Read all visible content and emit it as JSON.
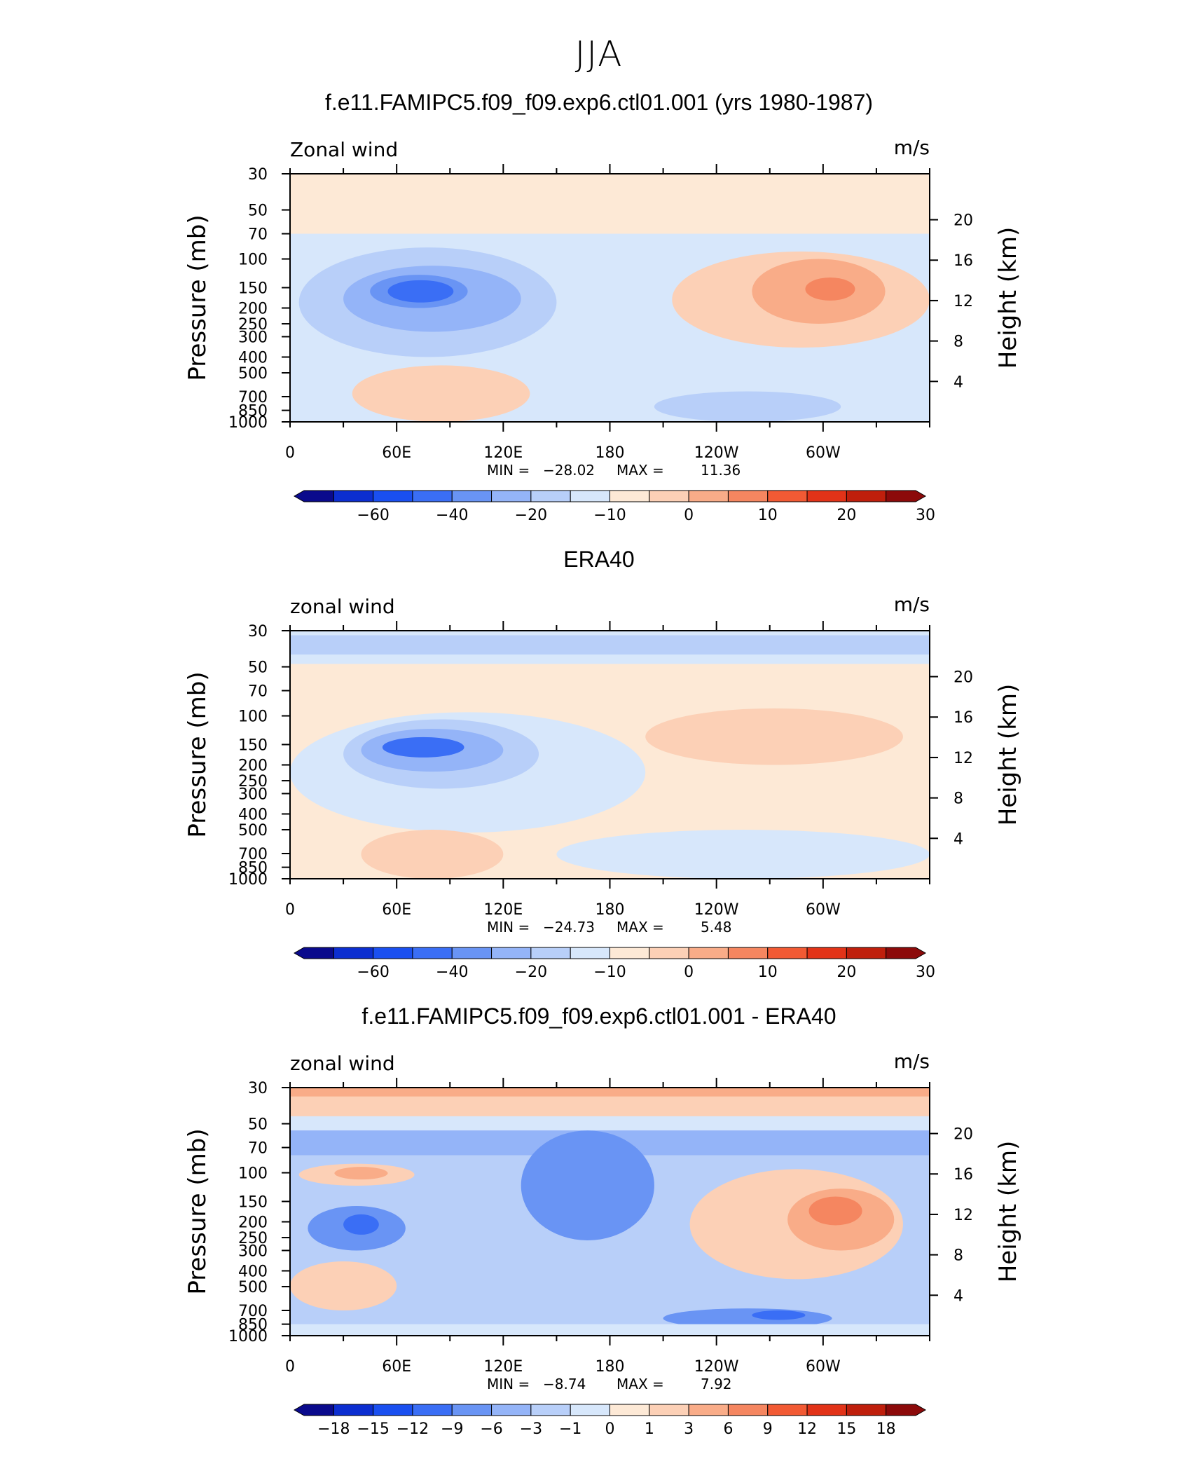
{
  "page_title": "JJA",
  "chart_data": [
    {
      "type": "heatmap",
      "title": "f.e11.FAMIPC5.f09_f09.exp6.ctl01.001 (yrs 1980-1987)",
      "variable": "Zonal wind",
      "units": "m/s",
      "ylabel": "Pressure (mb)",
      "ylabel_right": "Height (km)",
      "xticks": [
        "0",
        "60E",
        "120E",
        "180",
        "120W",
        "60W"
      ],
      "yticks": [
        "30",
        "50",
        "70",
        "100",
        "150",
        "200",
        "250",
        "300",
        "400",
        "500",
        "700",
        "850",
        "1000"
      ],
      "yticks_right": [
        "20",
        "16",
        "12",
        "8",
        "4"
      ],
      "ylim": [
        1000,
        30
      ],
      "stats": {
        "min_label": "MIN =",
        "min": "−28.02",
        "max_label": "MAX =",
        "max": "11.36"
      },
      "colorbar": {
        "colors": [
          "#0a0a8c",
          "#0c2ed0",
          "#1a4ff0",
          "#3a6ef5",
          "#6994f4",
          "#94b4f8",
          "#b8cff9",
          "#d7e7fb",
          "#fde9d6",
          "#fcd0b6",
          "#f9ac88",
          "#f58660",
          "#f25a34",
          "#e23318",
          "#bf1f0c",
          "#8c0a0a"
        ],
        "labels": [
          "−60",
          "−40",
          "−20",
          "−10",
          "0",
          "10",
          "20",
          "30"
        ]
      },
      "field": {
        "background": "#d7e7fb",
        "features": [
          {
            "color": "#fde9d6",
            "lon": [
              0,
              360
            ],
            "p": [
              70,
              30
            ]
          },
          {
            "color": "#b8cff9",
            "lon": [
              5,
              150
            ],
            "p": [
              85,
              400
            ]
          },
          {
            "color": "#94b4f8",
            "lon": [
              30,
              130
            ],
            "p": [
              110,
              280
            ]
          },
          {
            "color": "#6994f4",
            "lon": [
              45,
              100
            ],
            "p": [
              125,
              200
            ]
          },
          {
            "color": "#3a6ef5",
            "lon": [
              55,
              92
            ],
            "p": [
              135,
              185
            ]
          },
          {
            "color": "#fcd0b6",
            "lon": [
              215,
              360
            ],
            "p": [
              90,
              350
            ]
          },
          {
            "color": "#f9ac88",
            "lon": [
              260,
              335
            ],
            "p": [
              100,
              250
            ]
          },
          {
            "color": "#f58660",
            "lon": [
              290,
              318
            ],
            "p": [
              130,
              180
            ]
          },
          {
            "color": "#fcd0b6",
            "lon": [
              35,
              135
            ],
            "p": [
              450,
              1000
            ]
          },
          {
            "color": "#b8cff9",
            "lon": [
              205,
              310
            ],
            "p": [
              650,
              1000
            ]
          }
        ]
      }
    },
    {
      "type": "heatmap",
      "title": "ERA40",
      "variable": "zonal wind",
      "units": "m/s",
      "ylabel": "Pressure (mb)",
      "ylabel_right": "Height (km)",
      "xticks": [
        "0",
        "60E",
        "120E",
        "180",
        "120W",
        "60W"
      ],
      "yticks": [
        "30",
        "50",
        "70",
        "100",
        "150",
        "200",
        "250",
        "300",
        "400",
        "500",
        "700",
        "850",
        "1000"
      ],
      "yticks_right": [
        "20",
        "16",
        "12",
        "8",
        "4"
      ],
      "ylim": [
        1000,
        30
      ],
      "stats": {
        "min_label": "MIN =",
        "min": "−24.73",
        "max_label": "MAX =",
        "max": "5.48"
      },
      "colorbar": {
        "colors": [
          "#0a0a8c",
          "#0c2ed0",
          "#1a4ff0",
          "#3a6ef5",
          "#6994f4",
          "#94b4f8",
          "#b8cff9",
          "#d7e7fb",
          "#fde9d6",
          "#fcd0b6",
          "#f9ac88",
          "#f58660",
          "#f25a34",
          "#e23318",
          "#bf1f0c",
          "#8c0a0a"
        ],
        "labels": [
          "−60",
          "−40",
          "−20",
          "−10",
          "0",
          "10",
          "20",
          "30"
        ]
      },
      "field": {
        "background": "#fde9d6",
        "features": [
          {
            "color": "#d7e7fb",
            "lon": [
              0,
              360
            ],
            "p": [
              28,
              48
            ]
          },
          {
            "color": "#b8cff9",
            "lon": [
              0,
              360
            ],
            "p": [
              32,
              42
            ]
          },
          {
            "color": "#d7e7fb",
            "lon": [
              0,
              200
            ],
            "p": [
              95,
              520
            ]
          },
          {
            "color": "#d7e7fb",
            "lon": [
              150,
              360
            ],
            "p": [
              500,
              1000
            ]
          },
          {
            "color": "#b8cff9",
            "lon": [
              30,
              140
            ],
            "p": [
              105,
              280
            ]
          },
          {
            "color": "#94b4f8",
            "lon": [
              40,
              120
            ],
            "p": [
              120,
              220
            ]
          },
          {
            "color": "#3a6ef5",
            "lon": [
              52,
              98
            ],
            "p": [
              135,
              180
            ]
          },
          {
            "color": "#fcd0b6",
            "lon": [
              200,
              345
            ],
            "p": [
              90,
              200
            ]
          },
          {
            "color": "#fcd0b6",
            "lon": [
              40,
              120
            ],
            "p": [
              500,
              1000
            ]
          },
          {
            "color": "#fde9d6",
            "lon": [
              100,
              240
            ],
            "p": [
              60,
              68
            ]
          }
        ]
      }
    },
    {
      "type": "heatmap",
      "title": "f.e11.FAMIPC5.f09_f09.exp6.ctl01.001 - ERA40",
      "variable": "zonal wind",
      "units": "m/s",
      "ylabel": "Pressure (mb)",
      "ylabel_right": "Height (km)",
      "xticks": [
        "0",
        "60E",
        "120E",
        "180",
        "120W",
        "60W"
      ],
      "yticks": [
        "30",
        "50",
        "70",
        "100",
        "150",
        "200",
        "250",
        "300",
        "400",
        "500",
        "700",
        "850",
        "1000"
      ],
      "yticks_right": [
        "20",
        "16",
        "12",
        "8",
        "4"
      ],
      "ylim": [
        1000,
        30
      ],
      "stats": {
        "min_label": "MIN =",
        "min": "−8.74",
        "max_label": "MAX =",
        "max": "7.92"
      },
      "colorbar": {
        "colors": [
          "#0a0a8c",
          "#0c2ed0",
          "#1a4ff0",
          "#3a6ef5",
          "#6994f4",
          "#94b4f8",
          "#b8cff9",
          "#d7e7fb",
          "#fde9d6",
          "#fcd0b6",
          "#f9ac88",
          "#f58660",
          "#f25a34",
          "#e23318",
          "#bf1f0c",
          "#8c0a0a"
        ],
        "labels": [
          "−18",
          "−15",
          "−12",
          "−9",
          "−6",
          "−3",
          "−1",
          "0",
          "1",
          "3",
          "6",
          "9",
          "12",
          "15",
          "18"
        ]
      },
      "field": {
        "background": "#b8cff9",
        "features": [
          {
            "color": "#fcd0b6",
            "lon": [
              0,
              360
            ],
            "p": [
              28,
              45
            ]
          },
          {
            "color": "#f9ac88",
            "lon": [
              0,
              360
            ],
            "p": [
              28,
              34
            ]
          },
          {
            "color": "#d7e7fb",
            "lon": [
              0,
              360
            ],
            "p": [
              45,
              55
            ]
          },
          {
            "color": "#94b4f8",
            "lon": [
              0,
              360
            ],
            "p": [
              55,
              78
            ]
          },
          {
            "color": "#6994f4",
            "lon": [
              130,
              205
            ],
            "p": [
              55,
              260
            ]
          },
          {
            "color": "#fcd0b6",
            "lon": [
              5,
              70
            ],
            "p": [
              88,
              120
            ]
          },
          {
            "color": "#f9ac88",
            "lon": [
              25,
              55
            ],
            "p": [
              92,
              110
            ]
          },
          {
            "color": "#6994f4",
            "lon": [
              10,
              65
            ],
            "p": [
              160,
              300
            ]
          },
          {
            "color": "#3a6ef5",
            "lon": [
              30,
              50
            ],
            "p": [
              180,
              240
            ]
          },
          {
            "color": "#fcd0b6",
            "lon": [
              225,
              345
            ],
            "p": [
              95,
              450
            ]
          },
          {
            "color": "#f9ac88",
            "lon": [
              280,
              340
            ],
            "p": [
              125,
              300
            ]
          },
          {
            "color": "#f58660",
            "lon": [
              292,
              322
            ],
            "p": [
              140,
              210
            ]
          },
          {
            "color": "#fcd0b6",
            "lon": [
              0,
              60
            ],
            "p": [
              350,
              700
            ]
          },
          {
            "color": "#6994f4",
            "lon": [
              210,
              305
            ],
            "p": [
              680,
              900
            ]
          },
          {
            "color": "#3a6ef5",
            "lon": [
              260,
              290
            ],
            "p": [
              700,
              800
            ]
          },
          {
            "color": "#d7e7fb",
            "lon": [
              0,
              360
            ],
            "p": [
              850,
              1000
            ]
          }
        ]
      }
    }
  ]
}
